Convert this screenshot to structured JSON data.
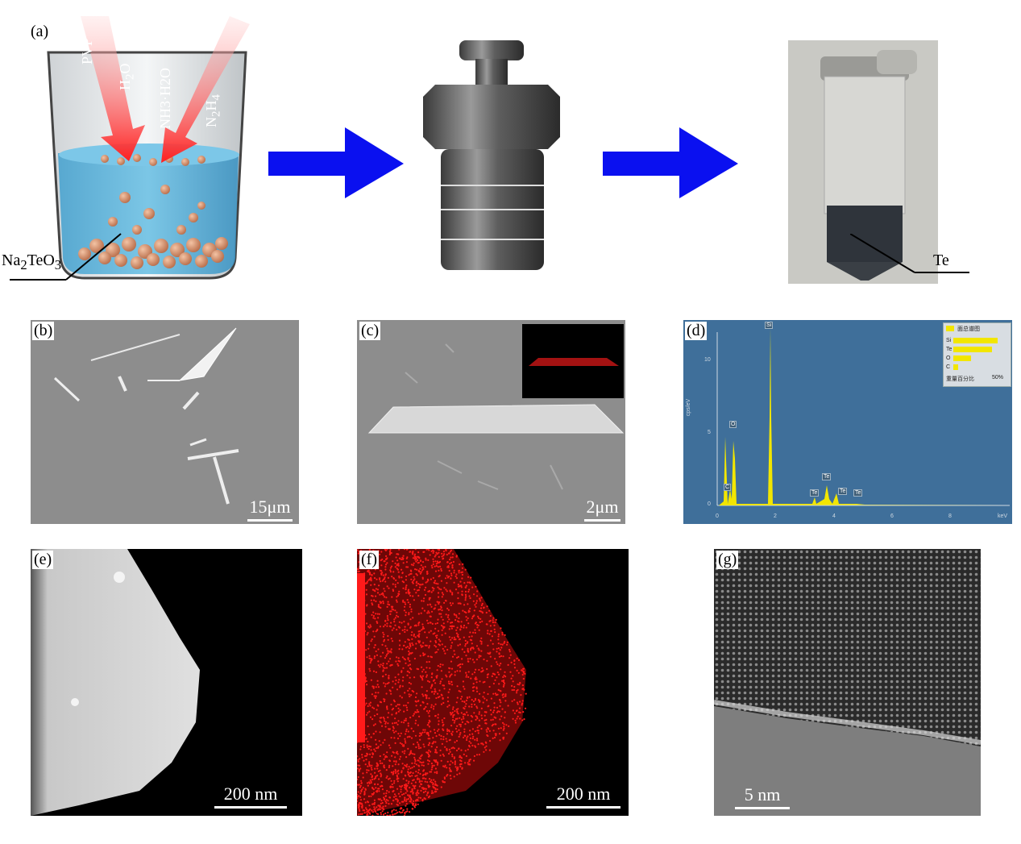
{
  "panels": {
    "a": {
      "label": "(a)",
      "reagents": [
        "PVP",
        "H2O",
        "NH3·H2O",
        "N2H4"
      ],
      "precursor": "Na2TeO3",
      "product": "Te"
    },
    "b": {
      "label": "(b)",
      "scale": "15μm"
    },
    "c": {
      "label": "(c)",
      "scale": "2μm"
    },
    "d": {
      "label": "(d)",
      "ylabel": "cps/eV",
      "xunit": "keV",
      "yticks": [
        "0",
        "5",
        "10"
      ],
      "xticks": [
        "0",
        "2",
        "4",
        "6",
        "8"
      ],
      "peaks": [
        "Si",
        "O",
        "C",
        "Te",
        "Te",
        "Te",
        "Te"
      ],
      "legend_title": "面总谱图",
      "legend_items": [
        "Si",
        "Te",
        "O",
        "C"
      ],
      "legend_footer": "重量百分比",
      "legend_pct": "50%"
    },
    "e": {
      "label": "(e)",
      "scale": "200 nm"
    },
    "f": {
      "label": "(f)",
      "scale": "200 nm"
    },
    "g": {
      "label": "(g)",
      "scale": "5 nm"
    }
  },
  "colors": {
    "arrow_blue": "#0a10f0",
    "reagent_arrow": "#ff2a2a",
    "eds_bg": "#3f6f9a",
    "eds_peak": "#f2e600",
    "map_red": "#ff1a1a"
  }
}
